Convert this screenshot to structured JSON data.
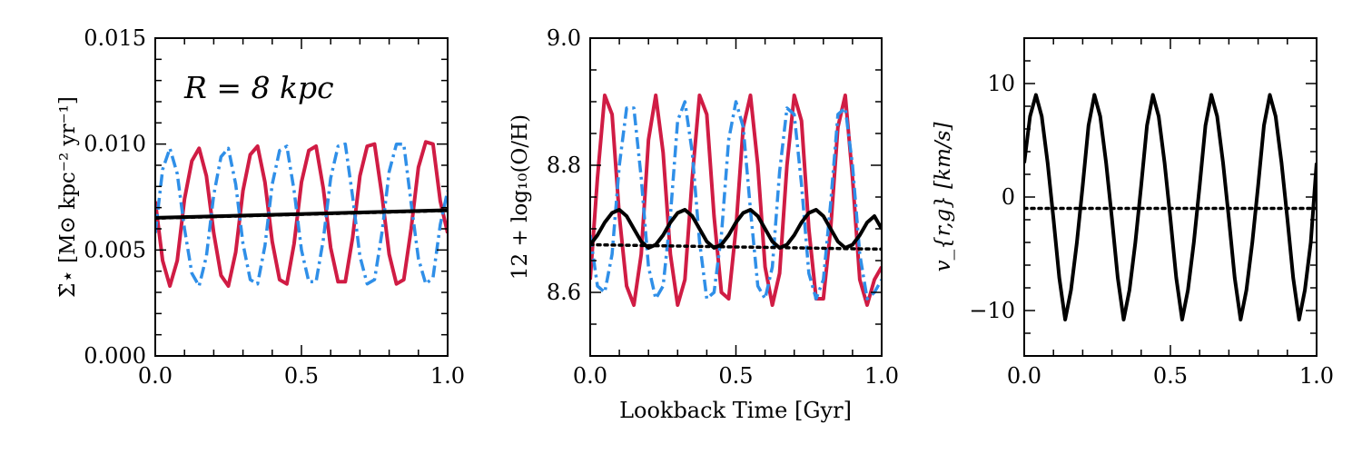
{
  "figure": {
    "shared_xlabel": "Lookback Time [Gyr]"
  },
  "colors": {
    "red": "#d01c44",
    "blue": "#2f8fe8",
    "black": "#000000"
  },
  "chart_data": [
    {
      "type": "line",
      "id": "sfr",
      "ylabel": "Σ̇⋆ [M⊙ kpc⁻² yr⁻¹]",
      "annotation": "R = 8 kpc",
      "xlim": [
        0.0,
        1.0
      ],
      "ylim": [
        0.0,
        0.015
      ],
      "xticks": [
        0.0,
        0.5,
        1.0
      ],
      "xtick_labels": [
        "0.0",
        "0.5",
        "1.0"
      ],
      "yticks": [
        0.0,
        0.005,
        0.01,
        0.015
      ],
      "ytick_labels": [
        "0.000",
        "0.005",
        "0.010",
        "0.015"
      ],
      "series": [
        {
          "name": "red-solid",
          "style": "solid",
          "color": "red",
          "x": [
            0.0,
            0.025,
            0.05,
            0.075,
            0.1,
            0.125,
            0.15,
            0.175,
            0.2,
            0.225,
            0.25,
            0.275,
            0.3,
            0.325,
            0.35,
            0.375,
            0.4,
            0.425,
            0.45,
            0.475,
            0.5,
            0.525,
            0.55,
            0.575,
            0.6,
            0.625,
            0.65,
            0.675,
            0.7,
            0.725,
            0.75,
            0.775,
            0.8,
            0.825,
            0.85,
            0.875,
            0.9,
            0.925,
            0.95,
            0.975,
            1.0
          ],
          "values": [
            0.0073,
            0.0045,
            0.0033,
            0.0045,
            0.0074,
            0.0092,
            0.0098,
            0.0085,
            0.0058,
            0.0038,
            0.0033,
            0.0049,
            0.0078,
            0.0095,
            0.0099,
            0.0082,
            0.0054,
            0.0036,
            0.0034,
            0.0053,
            0.0082,
            0.0097,
            0.0099,
            0.0079,
            0.0051,
            0.0035,
            0.0035,
            0.0056,
            0.0085,
            0.0099,
            0.01,
            0.0076,
            0.0048,
            0.0034,
            0.0036,
            0.006,
            0.0089,
            0.0101,
            0.01,
            0.0073,
            0.0058
          ]
        },
        {
          "name": "blue-dashdot",
          "style": "dashdot",
          "color": "blue",
          "x": [
            0.0,
            0.025,
            0.05,
            0.075,
            0.1,
            0.125,
            0.15,
            0.175,
            0.2,
            0.225,
            0.25,
            0.275,
            0.3,
            0.325,
            0.35,
            0.375,
            0.4,
            0.425,
            0.45,
            0.475,
            0.5,
            0.525,
            0.55,
            0.575,
            0.6,
            0.625,
            0.65,
            0.675,
            0.7,
            0.725,
            0.75,
            0.775,
            0.8,
            0.825,
            0.85,
            0.875,
            0.9,
            0.925,
            0.95,
            0.975,
            1.0
          ],
          "values": [
            0.0058,
            0.0088,
            0.0098,
            0.0086,
            0.006,
            0.0039,
            0.0033,
            0.0047,
            0.0076,
            0.0094,
            0.0098,
            0.0081,
            0.0053,
            0.0036,
            0.0034,
            0.0052,
            0.0081,
            0.0097,
            0.0099,
            0.0078,
            0.005,
            0.0035,
            0.0035,
            0.0055,
            0.0084,
            0.0099,
            0.01,
            0.0075,
            0.0047,
            0.0034,
            0.0036,
            0.0058,
            0.0087,
            0.01,
            0.01,
            0.0072,
            0.0046,
            0.0034,
            0.0037,
            0.0062,
            0.0078
          ]
        },
        {
          "name": "black-solid",
          "style": "solid",
          "color": "black",
          "x": [
            0.0,
            1.0
          ],
          "values": [
            0.00652,
            0.00688
          ]
        },
        {
          "name": "black-dotted",
          "style": "dotted",
          "color": "black",
          "x": [
            0.0,
            1.0
          ],
          "values": [
            0.0065,
            0.00686
          ]
        }
      ]
    },
    {
      "type": "line",
      "id": "metallicity",
      "ylabel": "12 + log₁₀(O/H)",
      "xlim": [
        0.0,
        1.0
      ],
      "ylim": [
        8.5,
        9.0
      ],
      "xticks": [
        0.0,
        0.5,
        1.0
      ],
      "xtick_labels": [
        "0.0",
        "0.5",
        "1.0"
      ],
      "yticks": [
        8.6,
        8.8,
        9.0
      ],
      "ytick_labels": [
        "8.6",
        "8.8",
        "9.0"
      ],
      "series": [
        {
          "name": "red-solid",
          "style": "solid",
          "color": "red",
          "x": [
            0.0,
            0.025,
            0.05,
            0.075,
            0.1,
            0.125,
            0.15,
            0.175,
            0.2,
            0.225,
            0.25,
            0.275,
            0.3,
            0.325,
            0.35,
            0.375,
            0.4,
            0.425,
            0.45,
            0.475,
            0.5,
            0.525,
            0.55,
            0.575,
            0.6,
            0.625,
            0.65,
            0.675,
            0.7,
            0.725,
            0.75,
            0.775,
            0.8,
            0.825,
            0.85,
            0.875,
            0.9,
            0.925,
            0.95,
            0.975,
            1.0
          ],
          "values": [
            8.62,
            8.78,
            8.91,
            8.88,
            8.72,
            8.61,
            8.58,
            8.66,
            8.84,
            8.91,
            8.82,
            8.66,
            8.58,
            8.62,
            8.78,
            8.91,
            8.88,
            8.72,
            8.6,
            8.59,
            8.7,
            8.86,
            8.91,
            8.8,
            8.64,
            8.58,
            8.63,
            8.8,
            8.91,
            8.87,
            8.7,
            8.59,
            8.59,
            8.7,
            8.86,
            8.91,
            8.78,
            8.62,
            8.58,
            8.62,
            8.64
          ]
        },
        {
          "name": "blue-dashdot",
          "style": "dashdot",
          "color": "blue",
          "x": [
            0.0,
            0.025,
            0.05,
            0.075,
            0.1,
            0.125,
            0.15,
            0.175,
            0.2,
            0.225,
            0.25,
            0.275,
            0.3,
            0.325,
            0.35,
            0.375,
            0.4,
            0.425,
            0.45,
            0.475,
            0.5,
            0.525,
            0.55,
            0.575,
            0.6,
            0.625,
            0.65,
            0.675,
            0.7,
            0.725,
            0.75,
            0.775,
            0.8,
            0.825,
            0.85,
            0.875,
            0.9,
            0.925,
            0.95,
            0.975,
            1.0
          ],
          "values": [
            8.69,
            8.61,
            8.6,
            8.66,
            8.8,
            8.89,
            8.89,
            8.78,
            8.64,
            8.59,
            8.61,
            8.72,
            8.87,
            8.9,
            8.82,
            8.68,
            8.59,
            8.6,
            8.69,
            8.84,
            8.9,
            8.86,
            8.73,
            8.61,
            8.59,
            8.64,
            8.79,
            8.89,
            8.88,
            8.77,
            8.63,
            8.59,
            8.62,
            8.74,
            8.88,
            8.89,
            8.8,
            8.66,
            8.59,
            8.6,
            8.62
          ]
        },
        {
          "name": "black-solid",
          "style": "solid",
          "color": "black",
          "x": [
            0.0,
            0.025,
            0.05,
            0.075,
            0.1,
            0.125,
            0.15,
            0.175,
            0.2,
            0.225,
            0.25,
            0.275,
            0.3,
            0.325,
            0.35,
            0.375,
            0.4,
            0.425,
            0.45,
            0.475,
            0.5,
            0.525,
            0.55,
            0.575,
            0.6,
            0.625,
            0.65,
            0.675,
            0.7,
            0.725,
            0.75,
            0.775,
            0.8,
            0.825,
            0.85,
            0.875,
            0.9,
            0.925,
            0.95,
            0.975,
            1.0
          ],
          "values": [
            8.675,
            8.69,
            8.71,
            8.725,
            8.73,
            8.72,
            8.7,
            8.68,
            8.67,
            8.675,
            8.69,
            8.71,
            8.725,
            8.73,
            8.72,
            8.7,
            8.68,
            8.67,
            8.675,
            8.69,
            8.71,
            8.725,
            8.73,
            8.72,
            8.7,
            8.68,
            8.67,
            8.675,
            8.69,
            8.71,
            8.725,
            8.73,
            8.72,
            8.7,
            8.68,
            8.67,
            8.675,
            8.69,
            8.71,
            8.72,
            8.7
          ]
        },
        {
          "name": "black-dotted",
          "style": "dotted",
          "color": "black",
          "x": [
            0.0,
            1.0
          ],
          "values": [
            8.675,
            8.668
          ]
        }
      ]
    },
    {
      "type": "line",
      "id": "velocity",
      "ylabel": "v_{r,g} [km/s]",
      "xlim": [
        0.0,
        1.0
      ],
      "ylim": [
        -14.0,
        14.0
      ],
      "xticks": [
        0.0,
        0.5,
        1.0
      ],
      "xtick_labels": [
        "0.0",
        "0.5",
        "1.0"
      ],
      "yticks": [
        -10,
        0,
        10
      ],
      "ytick_labels": [
        "−10",
        "0",
        "10"
      ],
      "series": [
        {
          "name": "black-solid",
          "style": "solid",
          "color": "black",
          "x": [
            0.0,
            0.02,
            0.04,
            0.06,
            0.08,
            0.1,
            0.12,
            0.14,
            0.16,
            0.18,
            0.2,
            0.22,
            0.24,
            0.26,
            0.28,
            0.3,
            0.32,
            0.34,
            0.36,
            0.38,
            0.4,
            0.42,
            0.44,
            0.46,
            0.48,
            0.5,
            0.52,
            0.54,
            0.56,
            0.58,
            0.6,
            0.62,
            0.64,
            0.66,
            0.68,
            0.7,
            0.72,
            0.74,
            0.76,
            0.78,
            0.8,
            0.82,
            0.84,
            0.86,
            0.88,
            0.9,
            0.92,
            0.94,
            0.96,
            0.98,
            1.0
          ],
          "values": [
            3.0,
            7.1,
            9.0,
            7.1,
            3.0,
            -1.9,
            -7.1,
            -10.8,
            -8.2,
            -4.0,
            1.0,
            6.3,
            9.0,
            7.1,
            3.0,
            -1.9,
            -7.1,
            -10.8,
            -8.2,
            -4.0,
            1.0,
            6.3,
            9.0,
            7.1,
            3.0,
            -1.9,
            -7.1,
            -10.8,
            -8.2,
            -4.0,
            1.0,
            6.3,
            9.0,
            7.1,
            3.0,
            -1.9,
            -7.1,
            -10.8,
            -8.2,
            -4.0,
            1.0,
            6.3,
            9.0,
            7.1,
            3.0,
            -1.9,
            -7.1,
            -10.8,
            -8.2,
            -4.0,
            3.0
          ]
        },
        {
          "name": "black-dotted",
          "style": "dotted",
          "color": "black",
          "x": [
            0.0,
            1.0
          ],
          "values": [
            -1.0,
            -1.0
          ]
        }
      ]
    }
  ]
}
